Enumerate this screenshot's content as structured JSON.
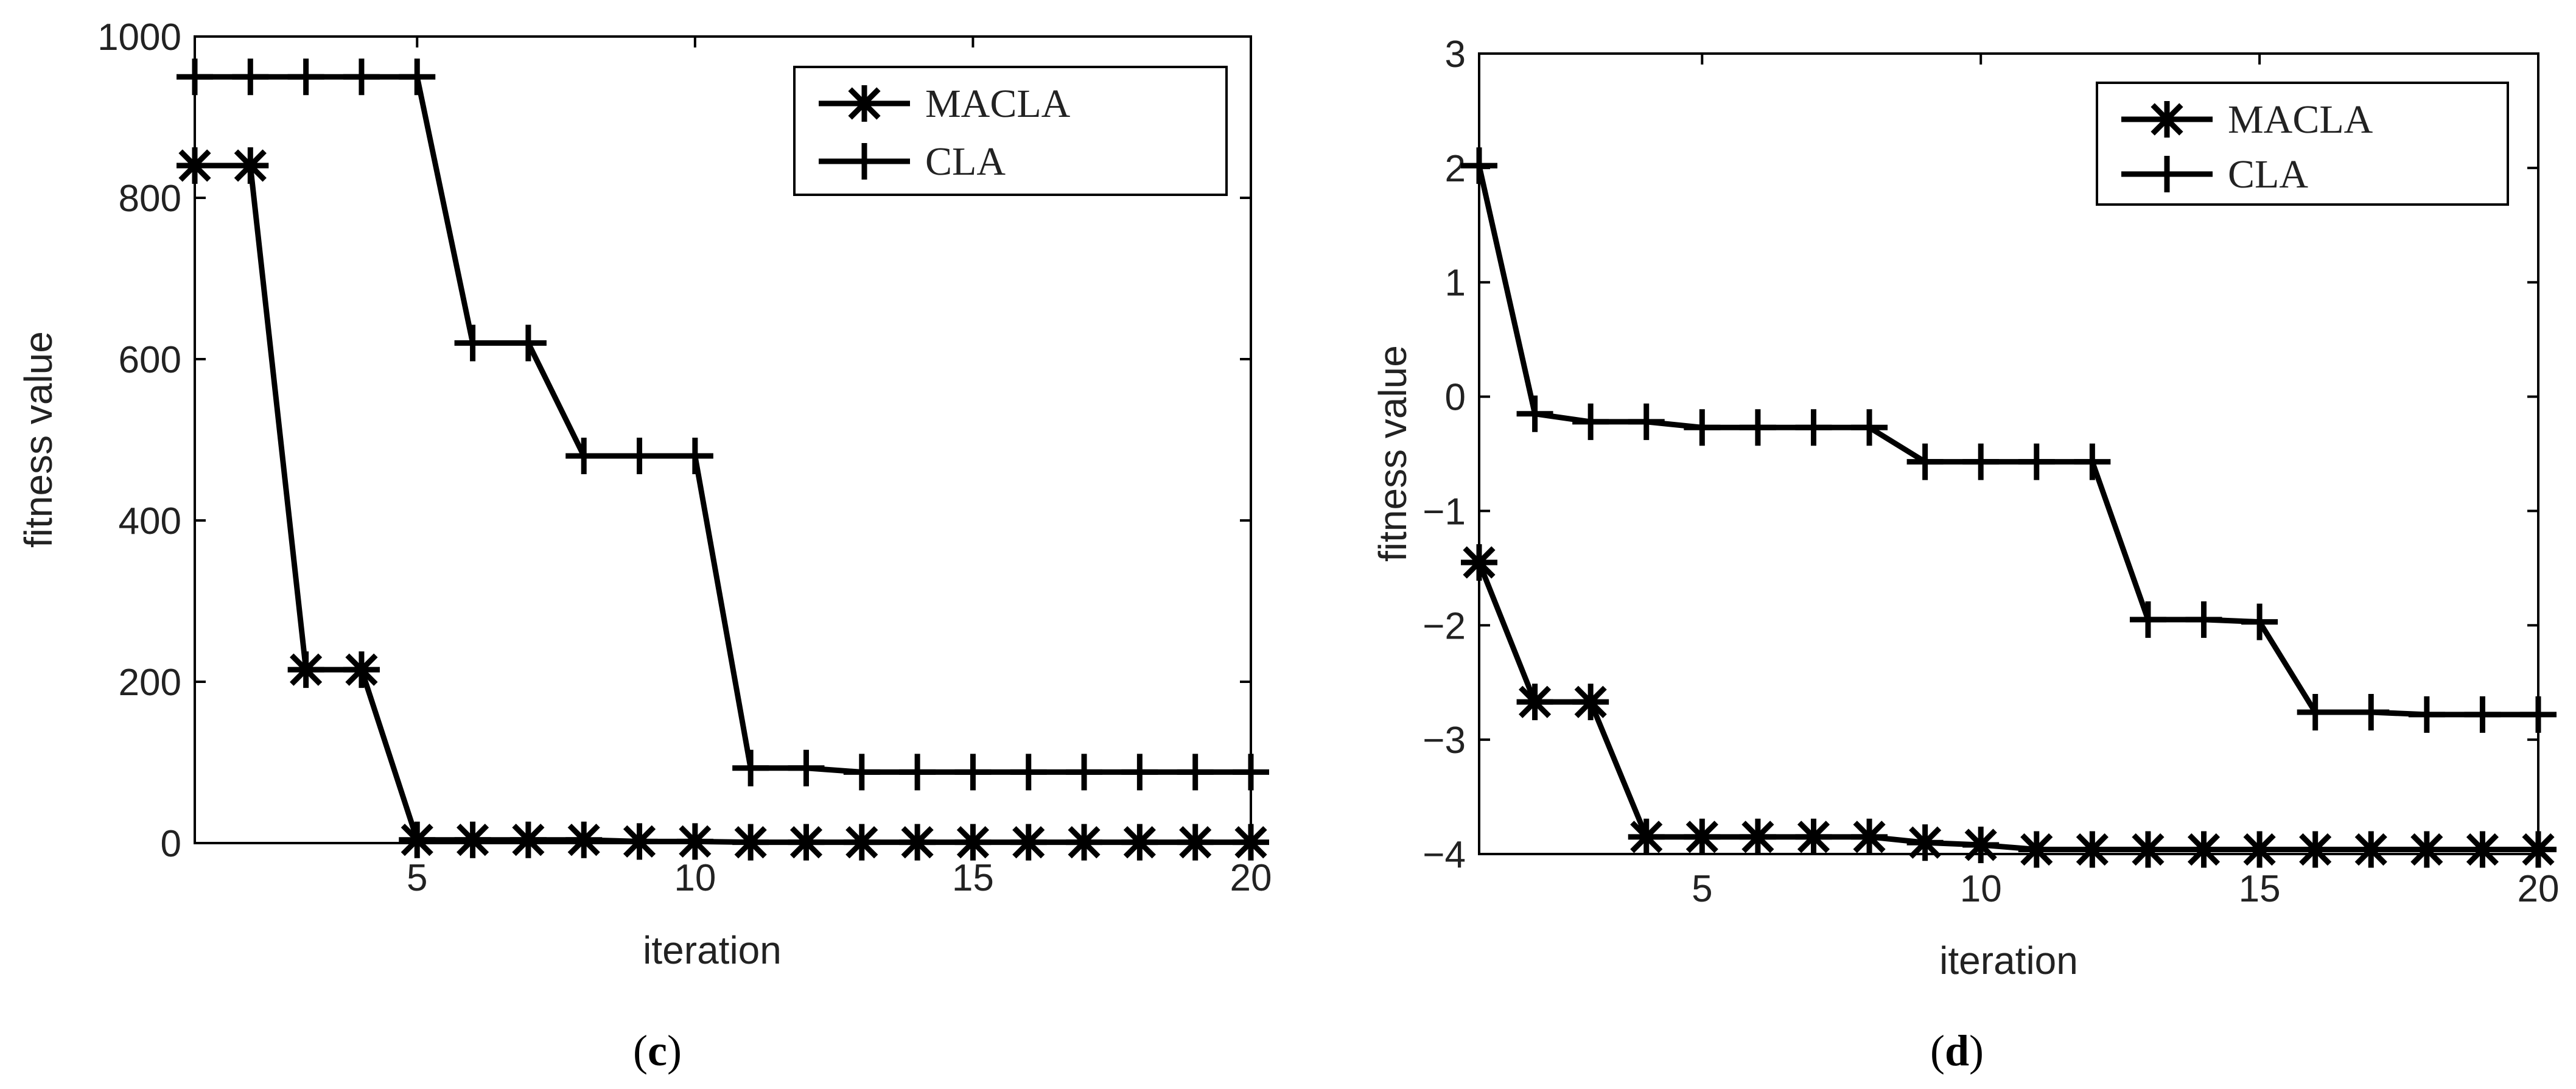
{
  "chart_data": [
    {
      "type": "line",
      "panel_label": "c",
      "xlabel": "iteration",
      "ylabel": "fitness value",
      "xlim": [
        1,
        20
      ],
      "ylim": [
        0,
        1000
      ],
      "xticks": [
        5,
        10,
        15,
        20
      ],
      "xtick_labels": [
        "5",
        "10",
        "15",
        "20"
      ],
      "yticks": [
        0,
        200,
        400,
        600,
        800,
        1000
      ],
      "ytick_labels": [
        "0",
        "200",
        "400",
        "600",
        "800",
        "1000"
      ],
      "legend_position": "top-right",
      "x": [
        1,
        2,
        3,
        4,
        5,
        6,
        7,
        8,
        9,
        10,
        11,
        12,
        13,
        14,
        15,
        16,
        17,
        18,
        19,
        20
      ],
      "series": [
        {
          "name": "MACLA",
          "marker": "asterisk",
          "values": [
            840,
            840,
            215,
            215,
            4,
            4,
            4,
            4,
            2,
            2,
            1,
            1,
            1,
            1,
            1,
            1,
            1,
            1,
            1,
            1
          ]
        },
        {
          "name": "CLA",
          "marker": "plus",
          "values": [
            950,
            950,
            950,
            950,
            950,
            620,
            620,
            480,
            480,
            480,
            93,
            93,
            88,
            88,
            88,
            88,
            88,
            88,
            88,
            88
          ]
        }
      ]
    },
    {
      "type": "line",
      "panel_label": "d",
      "xlabel": "iteration",
      "ylabel": "fitness value",
      "xlim": [
        1,
        20
      ],
      "ylim": [
        -4,
        3
      ],
      "xticks": [
        5,
        10,
        15,
        20
      ],
      "xtick_labels": [
        "5",
        "10",
        "15",
        "20"
      ],
      "yticks": [
        -4,
        -3,
        -2,
        -1,
        0,
        1,
        2,
        3
      ],
      "ytick_labels": [
        "−4",
        "−3",
        "−2",
        "−1",
        "0",
        "1",
        "2",
        "3"
      ],
      "legend_position": "top-right",
      "x": [
        1,
        2,
        3,
        4,
        5,
        6,
        7,
        8,
        9,
        10,
        11,
        12,
        13,
        14,
        15,
        16,
        17,
        18,
        19,
        20
      ],
      "series": [
        {
          "name": "MACLA",
          "marker": "asterisk",
          "values": [
            -1.45,
            -2.67,
            -2.67,
            -3.85,
            -3.85,
            -3.85,
            -3.85,
            -3.85,
            -3.9,
            -3.92,
            -3.96,
            -3.96,
            -3.96,
            -3.96,
            -3.96,
            -3.96,
            -3.96,
            -3.96,
            -3.96,
            -3.96
          ]
        },
        {
          "name": "CLA",
          "marker": "plus",
          "values": [
            2.02,
            -0.15,
            -0.22,
            -0.22,
            -0.27,
            -0.27,
            -0.27,
            -0.27,
            -0.57,
            -0.57,
            -0.57,
            -0.57,
            -1.95,
            -1.95,
            -1.97,
            -2.76,
            -2.76,
            -2.78,
            -2.78,
            -2.78
          ]
        }
      ]
    }
  ]
}
